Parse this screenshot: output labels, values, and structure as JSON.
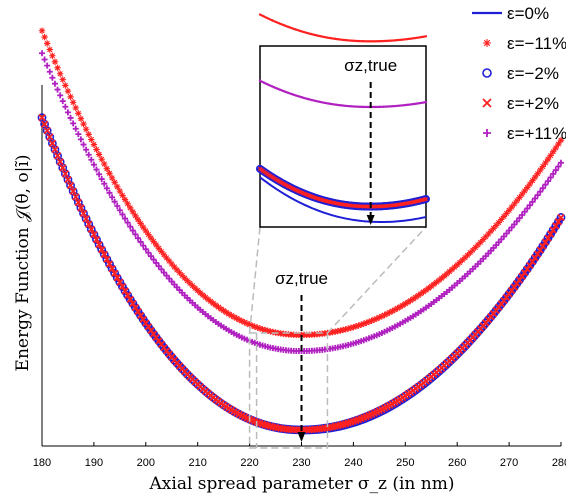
{
  "chart_data": {
    "type": "scatter",
    "xlabel": "Axial spread parameter σ_z (in nm)",
    "ylabel": "Energy Function 𝒥(θ, o|ĩ)",
    "xlim": [
      180,
      280
    ],
    "x_ticks": [
      "180",
      "190",
      "200",
      "210",
      "220",
      "230",
      "240",
      "250",
      "260",
      "270",
      "280"
    ],
    "y_ticks_shown": false,
    "legend_position": "top-right",
    "annotation": "σz,true",
    "annotation_x": 230,
    "true_value": 230,
    "x_range_points": [
      180,
      280
    ],
    "series": [
      {
        "name": "ε=0%",
        "marker": "line",
        "color": "#1f1fd6",
        "curve": {
          "min_x": 231,
          "min_y": 0.02,
          "y_left": 1.0,
          "y_right": 0.68
        }
      },
      {
        "name": "ε=−11%",
        "marker": "asterisk",
        "color": "#ff2020",
        "curve": {
          "min_x": 230,
          "min_y": 0.325,
          "y_left": 1.27,
          "y_right": 0.93
        }
      },
      {
        "name": "ε=−2%",
        "marker": "circle",
        "color": "#1f1fd6",
        "curve": {
          "min_x": 230,
          "min_y": 0.03,
          "y_left": 1.0,
          "y_right": 0.69
        }
      },
      {
        "name": "ε=+2%",
        "marker": "x",
        "color": "#ff2020",
        "curve": {
          "min_x": 230,
          "min_y": 0.03,
          "y_left": 1.0,
          "y_right": 0.69
        }
      },
      {
        "name": "ε=+11%",
        "marker": "plus",
        "color": "#b020c0",
        "curve": {
          "min_x": 230,
          "min_y": 0.275,
          "y_left": 1.2,
          "y_right": 0.86
        }
      }
    ],
    "inset": {
      "xlim": [
        220,
        235
      ],
      "annotation": "σz,true",
      "annotation_x": 230
    }
  }
}
